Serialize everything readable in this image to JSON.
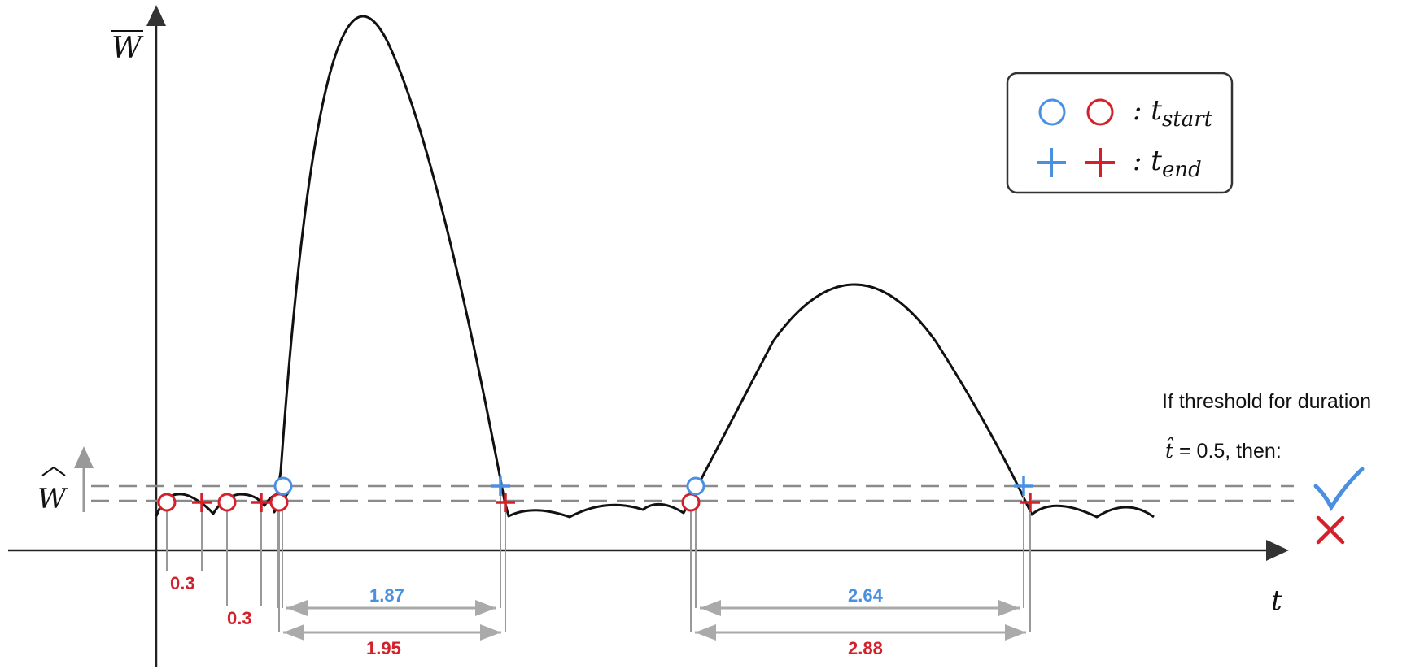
{
  "axes": {
    "y_label": "W",
    "x_label": "t",
    "threshold_label": "W"
  },
  "legend": {
    "start_label": ": t",
    "start_sub": "start",
    "end_label": ": t",
    "end_sub": "end"
  },
  "note": {
    "line1": "If threshold for duration",
    "tau_symbol": "t̂",
    "line2": " = 0.5, then:"
  },
  "durations": [
    {
      "value": "0.3",
      "threshold": "lower",
      "color": "#d4202a"
    },
    {
      "value": "0.3",
      "threshold": "lower",
      "color": "#d4202a"
    },
    {
      "value": "1.87",
      "threshold": "upper",
      "color": "#4a90e2"
    },
    {
      "value": "1.95",
      "threshold": "lower",
      "color": "#d4202a"
    },
    {
      "value": "2.64",
      "threshold": "upper",
      "color": "#4a90e2"
    },
    {
      "value": "2.88",
      "threshold": "lower",
      "color": "#d4202a"
    }
  ],
  "results": [
    {
      "threshold": "upper",
      "icon": "check-mark-icon",
      "color": "#4a90e2"
    },
    {
      "threshold": "lower",
      "icon": "cross-mark-icon",
      "color": "#d4202a"
    }
  ],
  "colors": {
    "upper_threshold": "#4a90e2",
    "lower_threshold": "#d4202a",
    "curve": "#111111",
    "guide": "#999999"
  }
}
